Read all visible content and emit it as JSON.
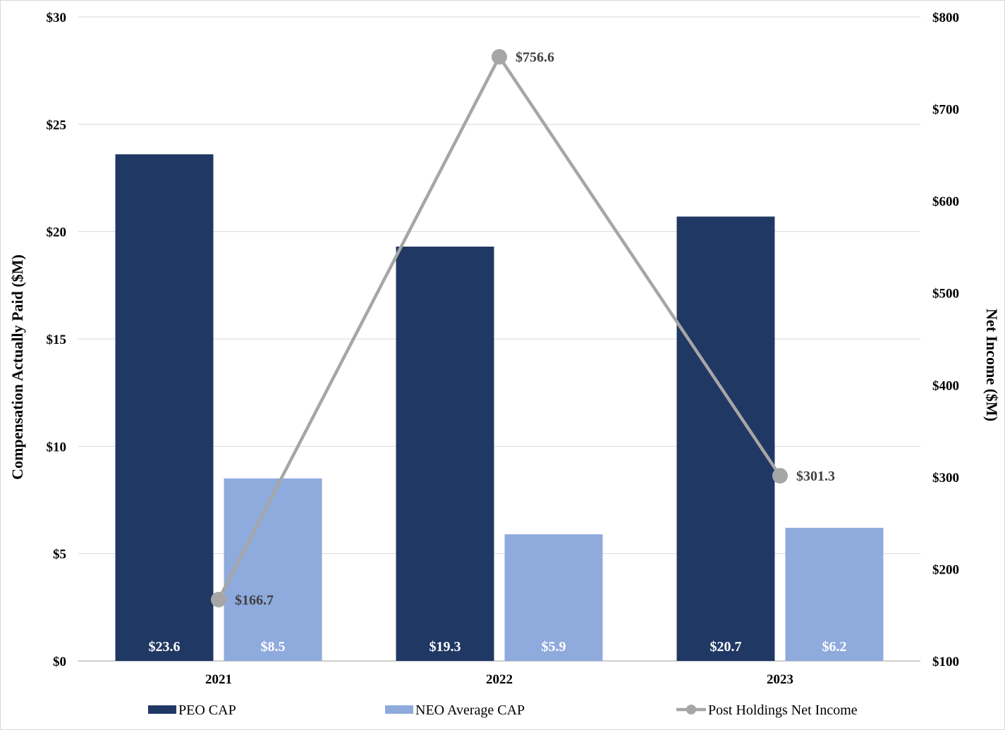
{
  "chart_data": {
    "type": "bar",
    "categories": [
      "2021",
      "2022",
      "2023"
    ],
    "series": [
      {
        "name": "PEO CAP",
        "type": "bar",
        "axis": "left",
        "color": "#203864",
        "values": [
          23.6,
          19.3,
          20.7
        ],
        "labels": [
          "$23.6",
          "$19.3",
          "$20.7"
        ]
      },
      {
        "name": "NEO Average CAP",
        "type": "bar",
        "axis": "left",
        "color": "#8faadc",
        "values": [
          8.5,
          5.9,
          6.2
        ],
        "labels": [
          "$8.5",
          "$5.9",
          "$6.2"
        ]
      },
      {
        "name": "Post Holdings Net Income",
        "type": "line",
        "axis": "right",
        "color": "#a6a6a6",
        "values": [
          166.7,
          756.6,
          301.3
        ],
        "labels": [
          "$166.7",
          "$756.6",
          "$301.3"
        ]
      }
    ],
    "ylabel": "Compensation Actually Paid ($M)",
    "y2label": "Net Income ($M)",
    "ylim": [
      0,
      30
    ],
    "y2lim": [
      100,
      800
    ],
    "yticks": [
      "$0",
      "$5",
      "$10",
      "$15",
      "$20",
      "$25",
      "$30"
    ],
    "y2ticks": [
      "$100",
      "$200",
      "$300",
      "$400",
      "$500",
      "$600",
      "$700",
      "$800"
    ],
    "grid": true,
    "legend_position": "bottom"
  }
}
